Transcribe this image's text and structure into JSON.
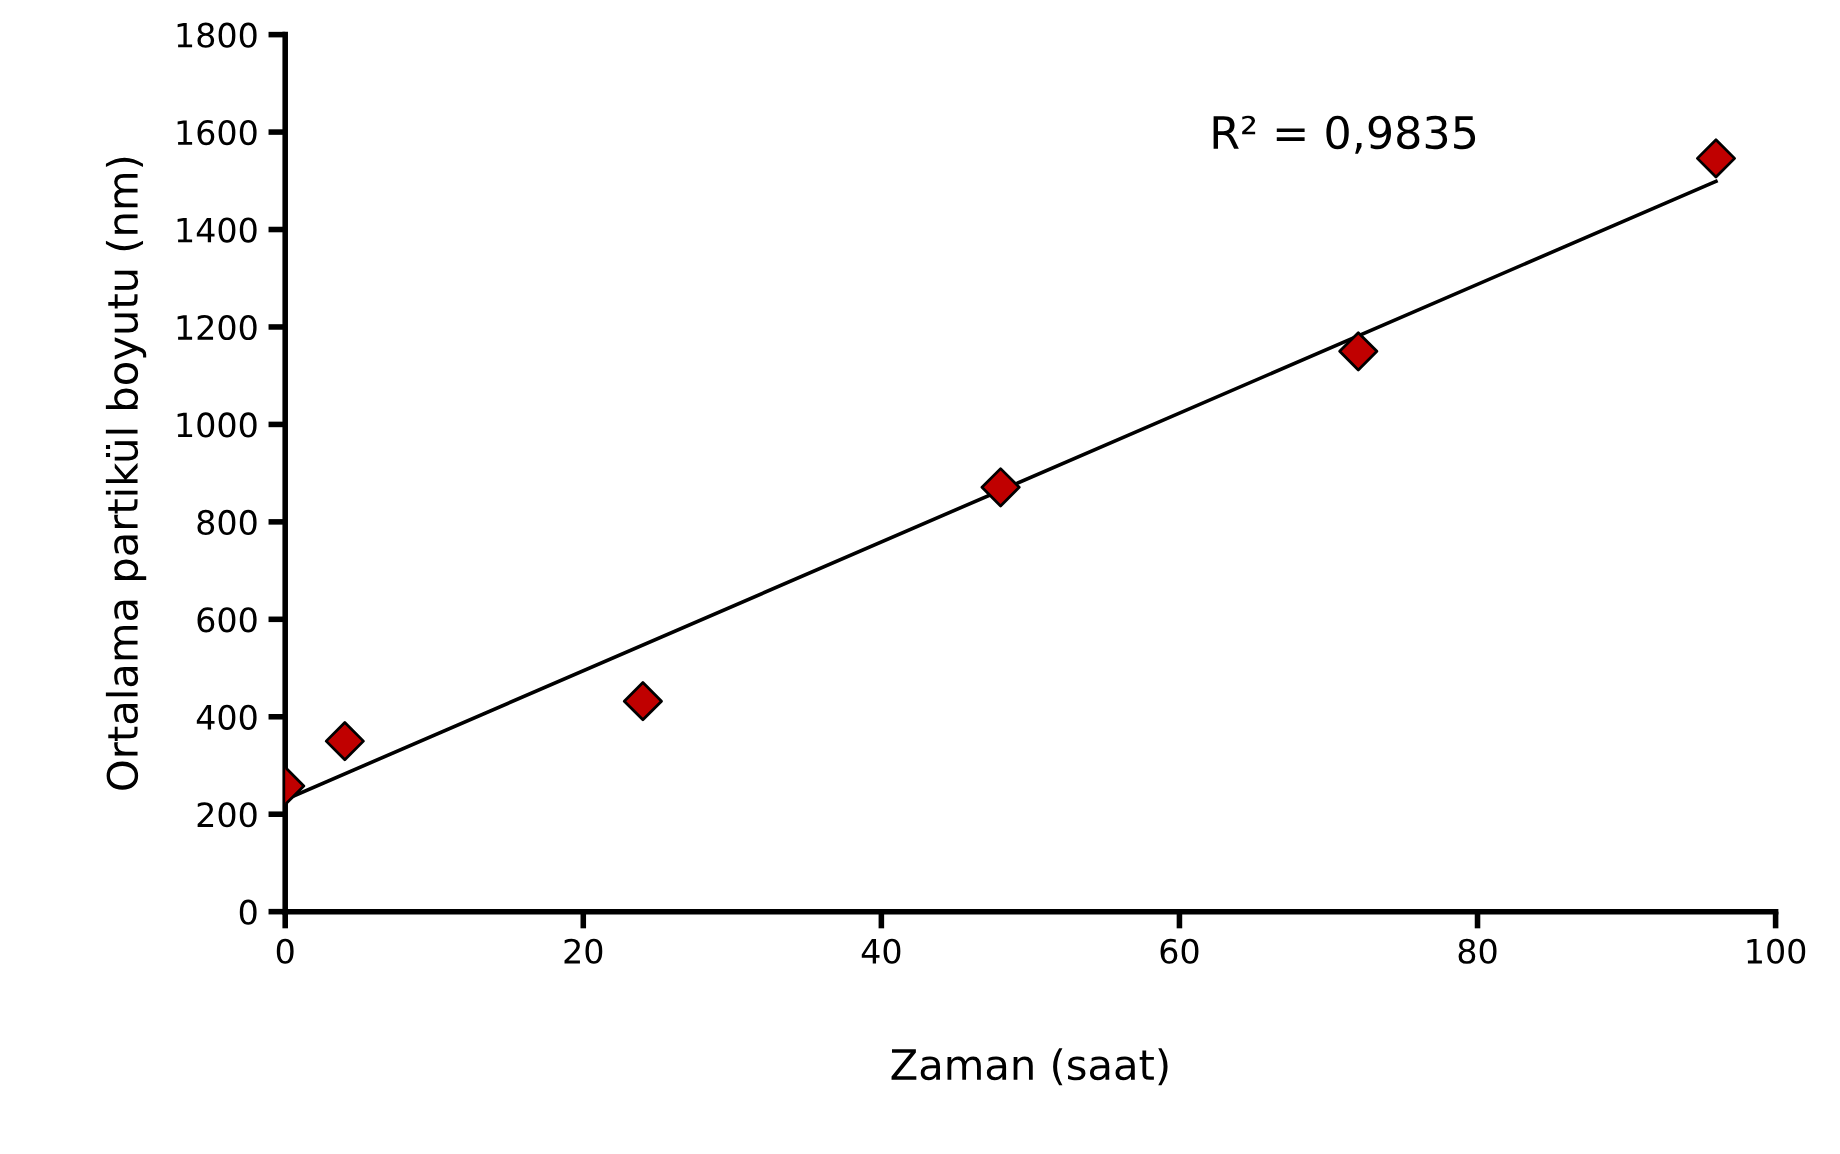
{
  "chart_data": {
    "type": "scatter",
    "xlabel": "Zaman (saat)",
    "ylabel": "Ortalama partikül boyutu (nm)",
    "series": [
      {
        "color": "#c00000",
        "marker": "diamond",
        "x": [
          0,
          4,
          24,
          48,
          72,
          96
        ],
        "values": [
          258,
          350,
          432,
          871,
          1150,
          1546
        ]
      },
      {
        "type": "line",
        "color": "#000000",
        "marker": "none",
        "line_style": "solid",
        "x": [
          0,
          96
        ],
        "values": [
          230,
          1499
        ]
      }
    ],
    "annotations": [
      "R² = 0,9835"
    ],
    "xlim": [
      0,
      100
    ],
    "xticks": [
      0,
      20,
      40,
      60,
      80,
      100
    ],
    "ylim": [
      0,
      1800
    ],
    "yticks": [
      0,
      200,
      400,
      600,
      800,
      1000,
      1200,
      1400,
      1600,
      1800
    ],
    "grid": false,
    "legend": false
  }
}
